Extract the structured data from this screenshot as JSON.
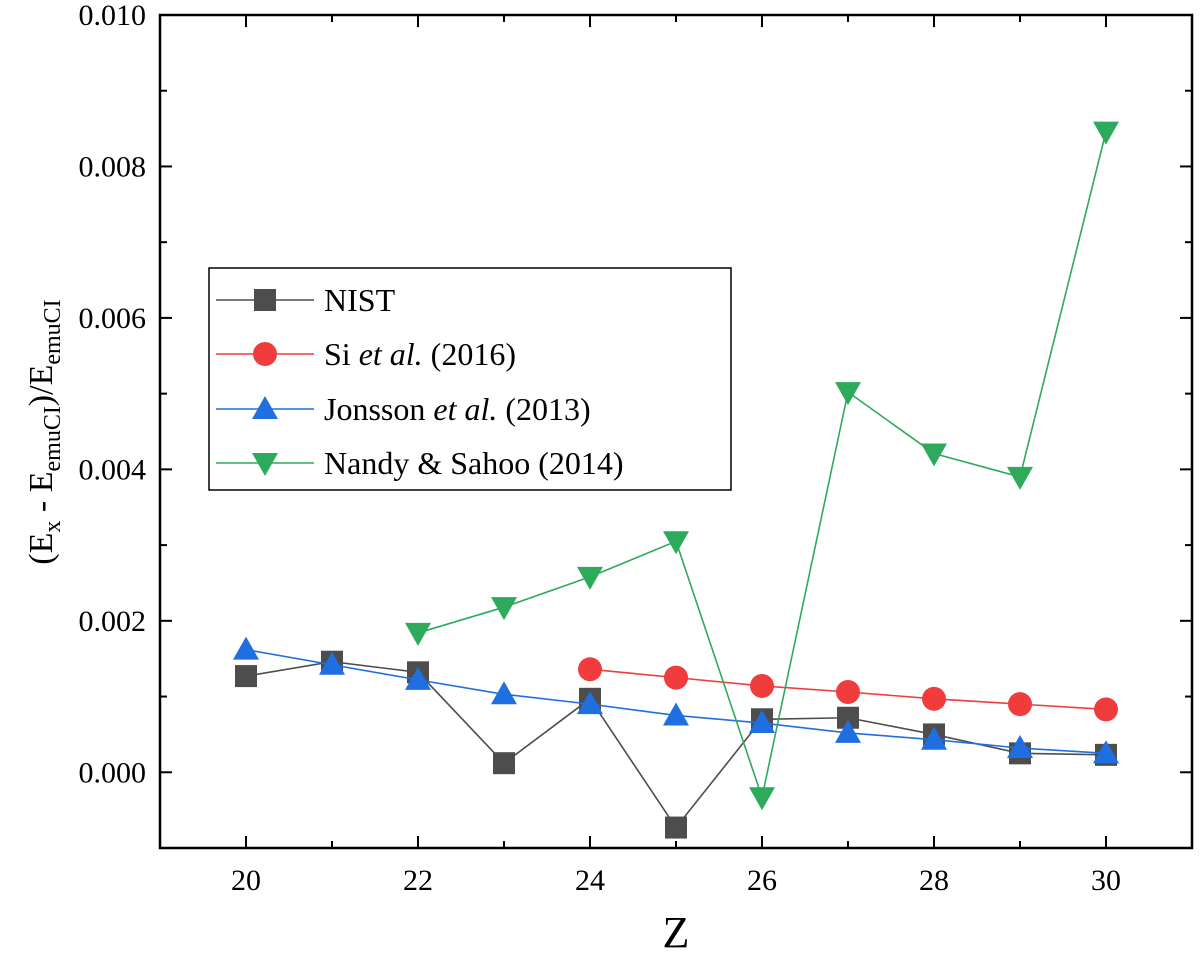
{
  "chart_data": {
    "type": "line",
    "title": "",
    "xlabel": "Z",
    "ylabel": {
      "prefix": "(E",
      "sub1": "x",
      "mid": " - E",
      "sub2": "emuCI",
      "after": ")/E",
      "sub3": "emuCI"
    },
    "xlim": [
      19,
      31
    ],
    "ylim": [
      -0.001,
      0.01
    ],
    "xticks": [
      20,
      22,
      24,
      26,
      28,
      30
    ],
    "xtick_labels": [
      "20",
      "22",
      "24",
      "26",
      "28",
      "30"
    ],
    "yticks": [
      0.0,
      0.002,
      0.004,
      0.006,
      0.008,
      0.01
    ],
    "ytick_labels": [
      "0.000",
      "0.002",
      "0.004",
      "0.006",
      "0.008",
      "0.010"
    ],
    "legend_position": "center-left",
    "series": [
      {
        "name": "NIST",
        "legend": {
          "pre": "NIST",
          "italic": "",
          "post": ""
        },
        "color": "#4d4d4d",
        "marker": "square",
        "x": [
          20,
          21,
          22,
          23,
          24,
          25,
          26,
          27,
          28,
          29,
          30
        ],
        "y": [
          0.00127,
          0.00146,
          0.00132,
          0.00012,
          0.00097,
          -0.00073,
          0.0007,
          0.00072,
          0.0005,
          0.00025,
          0.00023
        ]
      },
      {
        "name": "Si et al. (2016)",
        "legend": {
          "pre": "Si ",
          "italic": "et al.",
          "post": " (2016)"
        },
        "color": "#f03c3c",
        "marker": "circle",
        "x": [
          24,
          25,
          26,
          27,
          28,
          29,
          30
        ],
        "y": [
          0.00136,
          0.00125,
          0.00114,
          0.00106,
          0.00097,
          0.0009,
          0.00083
        ]
      },
      {
        "name": "Jonsson et al. (2013)",
        "legend": {
          "pre": "Jonsson ",
          "italic": "et al.",
          "post": " (2013)"
        },
        "color": "#1f6fe0",
        "marker": "triangle-up",
        "x": [
          20,
          21,
          22,
          23,
          24,
          25,
          26,
          27,
          28,
          29,
          30
        ],
        "y": [
          0.00162,
          0.00142,
          0.00122,
          0.00103,
          0.0009,
          0.00075,
          0.00065,
          0.00052,
          0.00043,
          0.00032,
          0.00025
        ]
      },
      {
        "name": "Nandy & Sahoo (2014)",
        "legend": {
          "pre": "Nandy & Sahoo (2014)",
          "italic": "",
          "post": ""
        },
        "color": "#2eaa5c",
        "marker": "triangle-down",
        "x": [
          22,
          23,
          24,
          25,
          26,
          27,
          28,
          29,
          30
        ],
        "y": [
          0.00184,
          0.00218,
          0.00258,
          0.00305,
          -0.00033,
          0.00502,
          0.00421,
          0.0039,
          0.00846
        ]
      }
    ]
  }
}
